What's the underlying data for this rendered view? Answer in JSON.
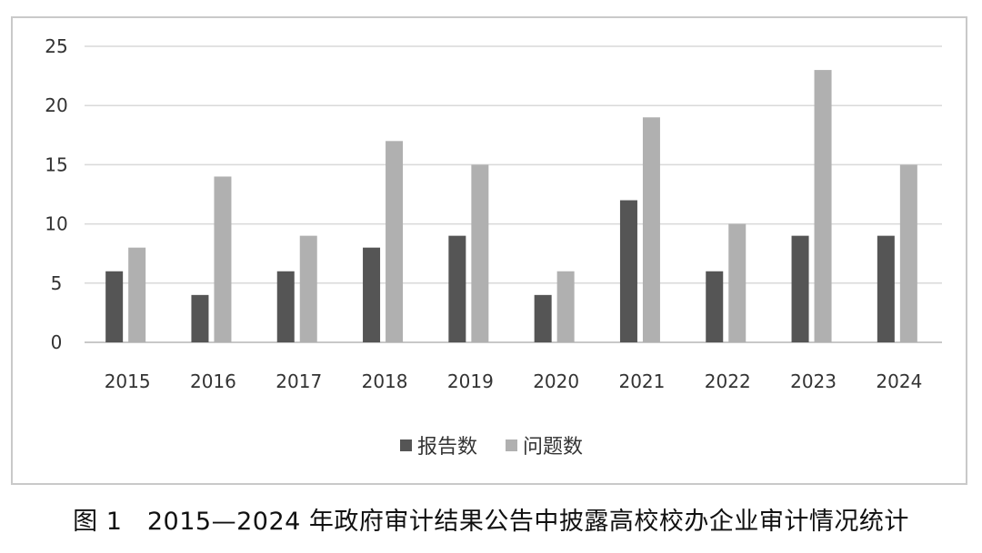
{
  "chart_data": {
    "type": "bar",
    "categories": [
      "2015",
      "2016",
      "2017",
      "2018",
      "2019",
      "2020",
      "2021",
      "2022",
      "2023",
      "2024"
    ],
    "series": [
      {
        "name": "报告数",
        "values": [
          6,
          4,
          6,
          8,
          9,
          4,
          12,
          6,
          9,
          9
        ],
        "color": "#555555"
      },
      {
        "name": "问题数",
        "values": [
          8,
          14,
          9,
          17,
          15,
          6,
          19,
          10,
          23,
          15
        ],
        "color": "#b0b0b0"
      }
    ],
    "ylim": [
      0,
      25
    ],
    "yticks": [
      "0",
      "5",
      "10",
      "15",
      "20",
      "25"
    ],
    "grid": true,
    "legend_position": "bottom",
    "axis_color": "#c8c8c8",
    "grid_color": "#d9d9d9"
  },
  "caption": "图 1　2015—2024 年政府审计结果公告中披露高校校办企业审计情况统计"
}
